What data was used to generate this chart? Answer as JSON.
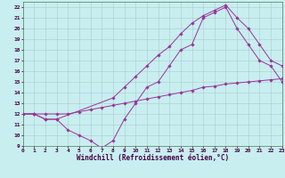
{
  "xlabel": "Windchill (Refroidissement éolien,°C)",
  "xlim": [
    0,
    23
  ],
  "ylim": [
    9,
    22.5
  ],
  "xticks": [
    0,
    1,
    2,
    3,
    4,
    5,
    6,
    7,
    8,
    9,
    10,
    11,
    12,
    13,
    14,
    15,
    16,
    17,
    18,
    19,
    20,
    21,
    22,
    23
  ],
  "yticks": [
    9,
    10,
    11,
    12,
    13,
    14,
    15,
    16,
    17,
    18,
    19,
    20,
    21,
    22
  ],
  "bg_color": "#c8eef0",
  "grid_color": "#aacccc",
  "line_color": "#993399",
  "line1_x": [
    0,
    1,
    2,
    3,
    4,
    5,
    6,
    7,
    8,
    9,
    10,
    11,
    12,
    13,
    14,
    15,
    16,
    17,
    18,
    19,
    20,
    21,
    22,
    23
  ],
  "line1_y": [
    12,
    12,
    11.5,
    11.5,
    10.5,
    10.0,
    9.5,
    8.8,
    9.5,
    11.5,
    13.0,
    14.5,
    15.0,
    16.5,
    18.0,
    18.5,
    21.0,
    21.5,
    22.0,
    20.0,
    18.5,
    17.0,
    16.5,
    15.0
  ],
  "line2_x": [
    0,
    1,
    2,
    3,
    8,
    9,
    10,
    11,
    12,
    13,
    14,
    15,
    16,
    17,
    18,
    19,
    20,
    21,
    22,
    23
  ],
  "line2_y": [
    12,
    12,
    11.5,
    11.5,
    13.5,
    14.5,
    15.5,
    16.5,
    17.5,
    18.3,
    19.5,
    20.5,
    21.2,
    21.7,
    22.2,
    21.0,
    20.0,
    18.5,
    17.0,
    16.5
  ],
  "line3_x": [
    0,
    1,
    2,
    3,
    4,
    5,
    6,
    7,
    8,
    9,
    10,
    11,
    12,
    13,
    14,
    15,
    16,
    17,
    18,
    19,
    20,
    21,
    22,
    23
  ],
  "line3_y": [
    12.0,
    12.0,
    12.0,
    12.0,
    12.0,
    12.2,
    12.4,
    12.6,
    12.8,
    13.0,
    13.2,
    13.4,
    13.6,
    13.8,
    14.0,
    14.2,
    14.5,
    14.6,
    14.8,
    14.9,
    15.0,
    15.1,
    15.2,
    15.3
  ],
  "tick_fontsize": 4.5,
  "xlabel_fontsize": 5.5,
  "markersize": 1.8,
  "linewidth": 0.7
}
